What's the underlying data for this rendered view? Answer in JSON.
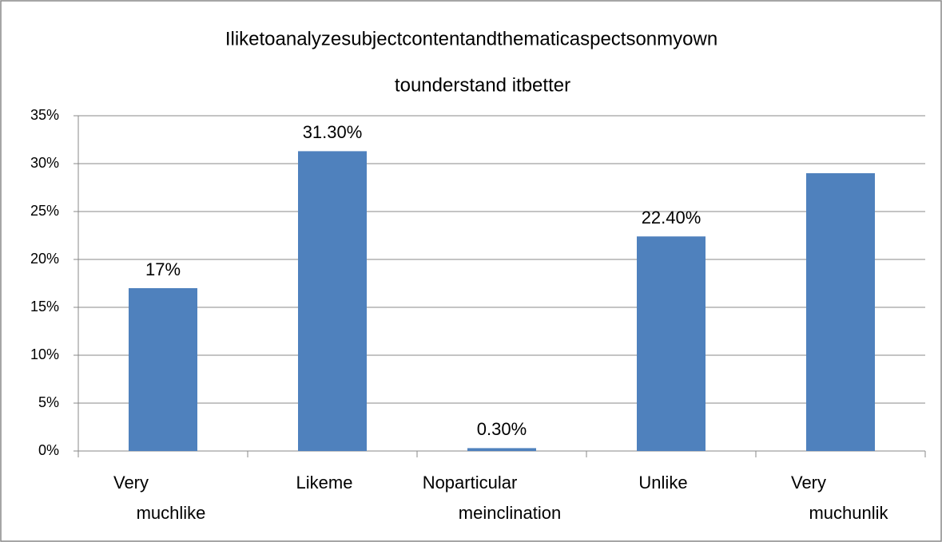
{
  "chart_data": {
    "type": "bar",
    "title": [
      "Iliketoanalyzesubjectcontentandthematicaspectsonmyown",
      "tounderstand itbetter"
    ],
    "categories": [
      [
        "Very",
        "muchlike"
      ],
      [
        "Likeme"
      ],
      [
        "Noparticular",
        "meinclination"
      ],
      [
        "Unlike"
      ],
      [
        "Very",
        "muchunlik"
      ]
    ],
    "values": [
      17,
      31.3,
      0.3,
      22.4,
      29
    ],
    "value_labels": [
      "17%",
      "31.30%",
      "0.30%",
      "22.40%",
      null
    ],
    "color": "#4f81bd",
    "ylim": [
      0,
      35
    ],
    "yticks": [
      {
        "value": 0,
        "label": "0%"
      },
      {
        "value": 5,
        "label": "5%"
      },
      {
        "value": 10,
        "label": "10%"
      },
      {
        "value": 15,
        "label": "15%"
      },
      {
        "value": 20,
        "label": "20%"
      },
      {
        "value": 25,
        "label": "25%"
      },
      {
        "value": 30,
        "label": "30%"
      },
      {
        "value": 35,
        "label": "35%"
      }
    ],
    "grid": true
  }
}
